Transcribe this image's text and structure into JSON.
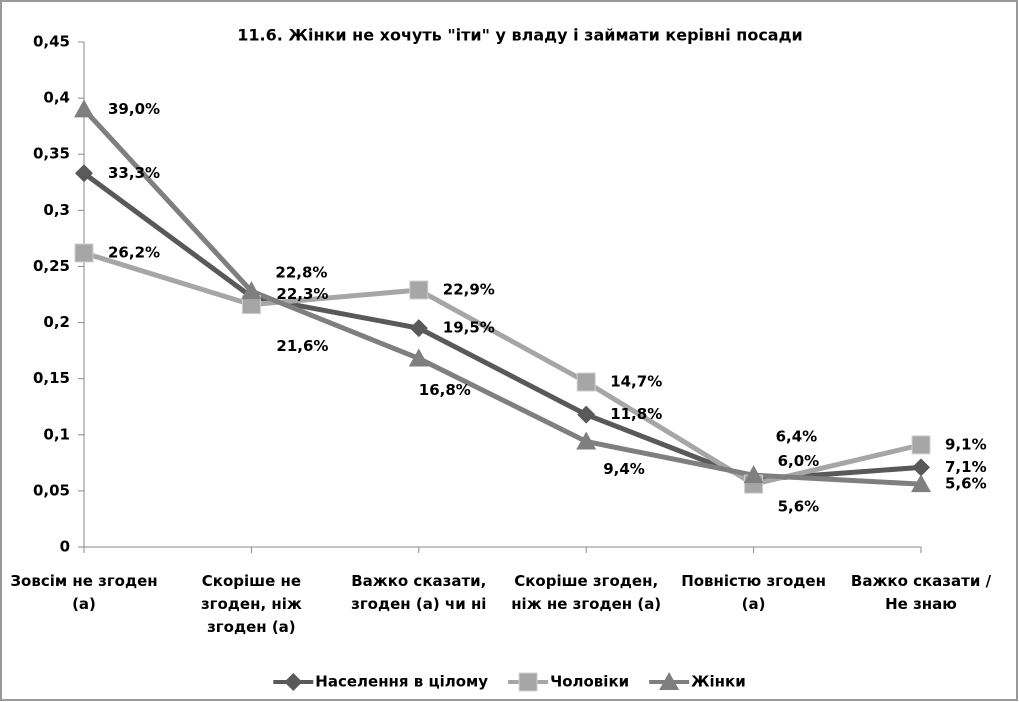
{
  "chart_data": {
    "type": "line",
    "title": "11.6. Жінки не хочуть \"іти\" у владу і займати керівні посади",
    "categories": [
      "Зовсім не згоден (а)",
      "Скоріше не згоден, ніж згоден (а)",
      "Важко сказати, згоден (а) чи ні",
      "Скоріше згоден, ніж не згоден (а)",
      "Повністю згоден (а)",
      "Важко сказати / Не знаю"
    ],
    "series": [
      {
        "name": "Населення в цілому",
        "color": "#595959",
        "marker": "diamond",
        "values": [
          0.333,
          0.223,
          0.195,
          0.118,
          0.06,
          0.071
        ],
        "value_labels": [
          "33,3%",
          "22,3%",
          "19,5%",
          "11,8%",
          "6,0%",
          "7,1%"
        ]
      },
      {
        "name": "Чоловіки",
        "color": "#a6a6a6",
        "marker": "square",
        "values": [
          0.262,
          0.216,
          0.229,
          0.147,
          0.056,
          0.091
        ],
        "value_labels": [
          "26,2%",
          "21,6%",
          "22,9%",
          "14,7%",
          "5,6%",
          "9,1%"
        ]
      },
      {
        "name": "Жінки",
        "color": "#7f7f7f",
        "marker": "triangle",
        "values": [
          0.39,
          0.228,
          0.168,
          0.094,
          0.064,
          0.056
        ],
        "value_labels": [
          "39,0%",
          "22,8%",
          "16,8%",
          "9,4%",
          "6,4%",
          "5,6%"
        ]
      }
    ],
    "ylim": [
      0,
      0.45
    ],
    "yticks": [
      0,
      {
        "value": 0.05,
        "label": "0,05"
      },
      {
        "value": 0.1,
        "label": "0,1"
      },
      {
        "value": 0.15,
        "label": "0,15"
      },
      {
        "value": 0.2,
        "label": "0,2"
      },
      {
        "value": 0.25,
        "label": "0,25"
      },
      {
        "value": 0.3,
        "label": "0,3"
      },
      {
        "value": 0.35,
        "label": "0,35"
      },
      {
        "value": 0.4,
        "label": "0,4"
      },
      {
        "value": 0.45,
        "label": "0,45"
      }
    ],
    "legend": "bottom"
  }
}
